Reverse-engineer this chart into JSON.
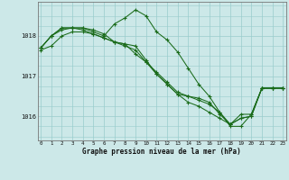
{
  "background_color": "#cce8e8",
  "grid_color": "#99cccc",
  "line_color": "#1a6b1a",
  "xlabel": "Graphe pression niveau de la mer (hPa)",
  "yticks": [
    1016,
    1017,
    1018
  ],
  "xticks": [
    0,
    1,
    2,
    3,
    4,
    5,
    6,
    7,
    8,
    9,
    10,
    11,
    12,
    13,
    14,
    15,
    16,
    17,
    18,
    19,
    20,
    21,
    22,
    23
  ],
  "ylim": [
    1015.4,
    1018.85
  ],
  "xlim": [
    -0.3,
    23.3
  ],
  "series": [
    [
      1017.7,
      1018.0,
      1018.15,
      1018.2,
      1018.2,
      1018.1,
      1018.0,
      1018.3,
      1018.45,
      1018.65,
      1018.5,
      1018.1,
      1017.9,
      1017.6,
      1017.2,
      1016.8,
      1016.5,
      1016.1,
      1015.75,
      1015.75,
      1016.05,
      1016.7,
      1016.7,
      1016.7
    ],
    [
      1017.7,
      1018.0,
      1018.2,
      1018.2,
      1018.2,
      1018.15,
      1018.05,
      1017.85,
      1017.8,
      1017.75,
      1017.4,
      1017.05,
      1016.8,
      1016.55,
      1016.35,
      1016.25,
      1016.1,
      1015.95,
      1015.8,
      1016.05,
      1016.05,
      1016.7,
      1016.7,
      1016.7
    ],
    [
      1017.7,
      1018.0,
      1018.2,
      1018.2,
      1018.15,
      1018.05,
      1017.95,
      1017.85,
      1017.8,
      1017.55,
      1017.35,
      1017.1,
      1016.85,
      1016.6,
      1016.5,
      1016.4,
      1016.3,
      1016.1,
      1015.8,
      1015.95,
      1016.0,
      1016.7,
      1016.7,
      1016.7
    ],
    [
      1017.65,
      1017.75,
      1018.0,
      1018.1,
      1018.1,
      1018.05,
      1017.95,
      1017.85,
      1017.75,
      1017.65,
      1017.35,
      1017.05,
      1016.8,
      1016.55,
      1016.5,
      1016.45,
      1016.35,
      1016.05,
      1015.8,
      1015.95,
      1016.0,
      1016.7,
      1016.7,
      1016.7
    ]
  ]
}
